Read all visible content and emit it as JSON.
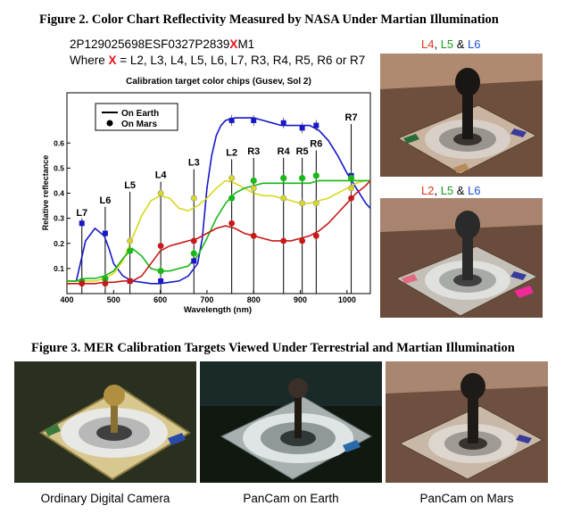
{
  "figure2": {
    "title": "Figure 2.  Color Chart Reflectivity Measured by NASA Under Martian Illumination",
    "filename_prefix": "2P129025698ESF0327P2839",
    "filename_x": "X",
    "filename_suffix": "M1",
    "where_prefix": "Where ",
    "where_x": "X",
    "where_rest": " = L2, L3, L4, L5, L6, L7, R3, R4, R5, R6 or R7",
    "photo_top_label": {
      "a": "L4",
      "sep1": ", ",
      "b": "L5",
      "sep2": " & ",
      "c": "L6"
    },
    "photo_bottom_label": {
      "a": "L2",
      "sep1": ", ",
      "b": "L5",
      "sep2": " & ",
      "c": "L6"
    },
    "label_colors": {
      "red": "#e8301e",
      "green": "#1a9a1a",
      "blue": "#1e4fd0"
    }
  },
  "chart_data": {
    "type": "line",
    "title": "Calibration target color chips (Gusev, Sol 2)",
    "xlabel": "Wavelength (nm)",
    "ylabel": "Relative reflectance",
    "xlim": [
      400,
      1050
    ],
    "ylim": [
      0,
      0.8
    ],
    "xticks": [
      "400",
      "500",
      "600",
      "700",
      "800",
      "900",
      "1000"
    ],
    "xtick_values": [
      400,
      500,
      600,
      700,
      800,
      900,
      1000
    ],
    "yticks": [
      "0.1",
      "0.2",
      "0.3",
      "0.4",
      "0.5",
      "0.6"
    ],
    "ytick_values": [
      0.1,
      0.2,
      0.3,
      0.4,
      0.5,
      0.6
    ],
    "legend": {
      "placement": "top-left",
      "earth": "On Earth",
      "mars": "On Mars"
    },
    "filters": [
      {
        "name": "L7",
        "wavelength": 432,
        "label_y": 0.31
      },
      {
        "name": "L6",
        "wavelength": 482,
        "label_y": 0.36
      },
      {
        "name": "L5",
        "wavelength": 535,
        "label_y": 0.42
      },
      {
        "name": "L4",
        "wavelength": 601,
        "label_y": 0.46
      },
      {
        "name": "L3",
        "wavelength": 672,
        "label_y": 0.51
      },
      {
        "name": "L2",
        "wavelength": 753,
        "label_y": 0.55
      },
      {
        "name": "R3",
        "wavelength": 800,
        "label_y": 0.555
      },
      {
        "name": "R4",
        "wavelength": 864,
        "label_y": 0.555
      },
      {
        "name": "R5",
        "wavelength": 904,
        "label_y": 0.555
      },
      {
        "name": "R6",
        "wavelength": 934,
        "label_y": 0.585
      },
      {
        "name": "R7",
        "wavelength": 1009,
        "label_y": 0.69
      }
    ],
    "series": [
      {
        "color": "#1818c8",
        "earth_curve": {
          "x": [
            400,
            420,
            440,
            460,
            480,
            490,
            500,
            520,
            540,
            560,
            580,
            600,
            620,
            640,
            660,
            680,
            690,
            700,
            710,
            720,
            730,
            740,
            760,
            780,
            800,
            820,
            840,
            860,
            880,
            900,
            920,
            940,
            960,
            980,
            1000,
            1020,
            1040,
            1050
          ],
          "y": [
            0.05,
            0.05,
            0.21,
            0.26,
            0.23,
            0.18,
            0.12,
            0.07,
            0.05,
            0.045,
            0.04,
            0.04,
            0.045,
            0.05,
            0.07,
            0.12,
            0.22,
            0.42,
            0.55,
            0.63,
            0.67,
            0.69,
            0.7,
            0.7,
            0.7,
            0.69,
            0.68,
            0.67,
            0.67,
            0.67,
            0.67,
            0.65,
            0.61,
            0.55,
            0.48,
            0.42,
            0.36,
            0.34
          ]
        },
        "mars_points": {
          "x": [
            432,
            482,
            535,
            601,
            672,
            753,
            800,
            864,
            904,
            934,
            1009
          ],
          "y": [
            0.28,
            0.24,
            0.05,
            0.05,
            0.13,
            0.69,
            0.69,
            0.68,
            0.66,
            0.67,
            0.47
          ]
        }
      },
      {
        "color": "#d8d820",
        "earth_curve": {
          "x": [
            400,
            420,
            440,
            460,
            480,
            500,
            520,
            540,
            560,
            580,
            600,
            620,
            640,
            660,
            680,
            700,
            720,
            740,
            760,
            780,
            800,
            820,
            840,
            860,
            880,
            900,
            920,
            940,
            960,
            980,
            1000,
            1020,
            1040,
            1050
          ],
          "y": [
            0.05,
            0.05,
            0.05,
            0.05,
            0.06,
            0.08,
            0.13,
            0.22,
            0.31,
            0.37,
            0.39,
            0.38,
            0.34,
            0.33,
            0.35,
            0.38,
            0.42,
            0.45,
            0.44,
            0.42,
            0.4,
            0.39,
            0.39,
            0.38,
            0.37,
            0.36,
            0.36,
            0.37,
            0.38,
            0.4,
            0.42,
            0.44,
            0.45,
            0.45
          ]
        },
        "mars_points": {
          "x": [
            432,
            482,
            535,
            601,
            672,
            753,
            800,
            864,
            904,
            934,
            1009
          ],
          "y": [
            0.05,
            0.05,
            0.21,
            0.4,
            0.38,
            0.46,
            0.42,
            0.38,
            0.36,
            0.36,
            0.42
          ]
        }
      },
      {
        "color": "#18b818",
        "earth_curve": {
          "x": [
            400,
            420,
            440,
            460,
            480,
            500,
            520,
            540,
            560,
            580,
            600,
            620,
            640,
            660,
            680,
            700,
            720,
            740,
            760,
            780,
            800,
            820,
            840,
            860,
            880,
            900,
            920,
            940,
            960,
            980,
            1000,
            1020,
            1040,
            1050
          ],
          "y": [
            0.05,
            0.05,
            0.06,
            0.06,
            0.07,
            0.09,
            0.14,
            0.18,
            0.15,
            0.1,
            0.09,
            0.09,
            0.1,
            0.11,
            0.15,
            0.22,
            0.3,
            0.36,
            0.4,
            0.42,
            0.43,
            0.44,
            0.44,
            0.44,
            0.44,
            0.44,
            0.44,
            0.45,
            0.45,
            0.45,
            0.45,
            0.45,
            0.45,
            0.45
          ]
        },
        "mars_points": {
          "x": [
            432,
            482,
            535,
            601,
            672,
            753,
            800,
            864,
            904,
            934,
            1009
          ],
          "y": [
            0.05,
            0.06,
            0.17,
            0.09,
            0.16,
            0.38,
            0.45,
            0.46,
            0.46,
            0.47,
            0.46
          ]
        }
      },
      {
        "color": "#c81818",
        "earth_curve": {
          "x": [
            400,
            420,
            440,
            460,
            480,
            500,
            520,
            540,
            560,
            580,
            600,
            620,
            640,
            660,
            680,
            700,
            720,
            740,
            760,
            780,
            800,
            820,
            840,
            860,
            880,
            900,
            920,
            940,
            960,
            980,
            1000,
            1020,
            1040,
            1050
          ],
          "y": [
            0.04,
            0.04,
            0.04,
            0.04,
            0.045,
            0.045,
            0.05,
            0.05,
            0.07,
            0.12,
            0.17,
            0.19,
            0.2,
            0.21,
            0.22,
            0.24,
            0.26,
            0.27,
            0.26,
            0.24,
            0.23,
            0.22,
            0.21,
            0.21,
            0.21,
            0.22,
            0.23,
            0.25,
            0.28,
            0.32,
            0.36,
            0.4,
            0.43,
            0.45
          ]
        },
        "mars_points": {
          "x": [
            432,
            482,
            535,
            601,
            672,
            753,
            800,
            864,
            904,
            934,
            1009
          ],
          "y": [
            0.04,
            0.04,
            0.05,
            0.19,
            0.21,
            0.28,
            0.23,
            0.21,
            0.21,
            0.23,
            0.38
          ]
        }
      }
    ]
  },
  "figure3": {
    "title": "Figure 3.  MER Calibration Targets Viewed Under Terrestrial and Martian Illumination",
    "captions": [
      "Ordinary Digital Camera",
      "PanCam on Earth",
      "PanCam on Mars"
    ]
  },
  "colors": {
    "mars_sky": "#a8846a",
    "mars_ground": "#7a5a46",
    "earth_bg": "#2a3020",
    "panel_dark": "#101810"
  }
}
